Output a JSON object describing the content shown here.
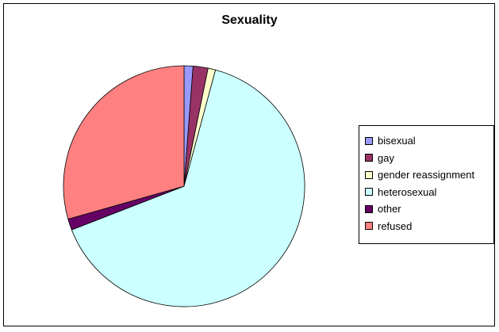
{
  "chart_data": {
    "type": "pie",
    "title": "Sexuality",
    "categories": [
      "bisexual",
      "gay",
      "gender reassignment",
      "heterosexual",
      "other",
      "refused"
    ],
    "values": [
      1.2,
      2.0,
      1.0,
      64.9,
      1.5,
      29.4
    ],
    "colors": [
      "#9999FF",
      "#993366",
      "#FFFFCC",
      "#CCFFFF",
      "#660066",
      "#FF8080"
    ],
    "legend_position": "right"
  }
}
